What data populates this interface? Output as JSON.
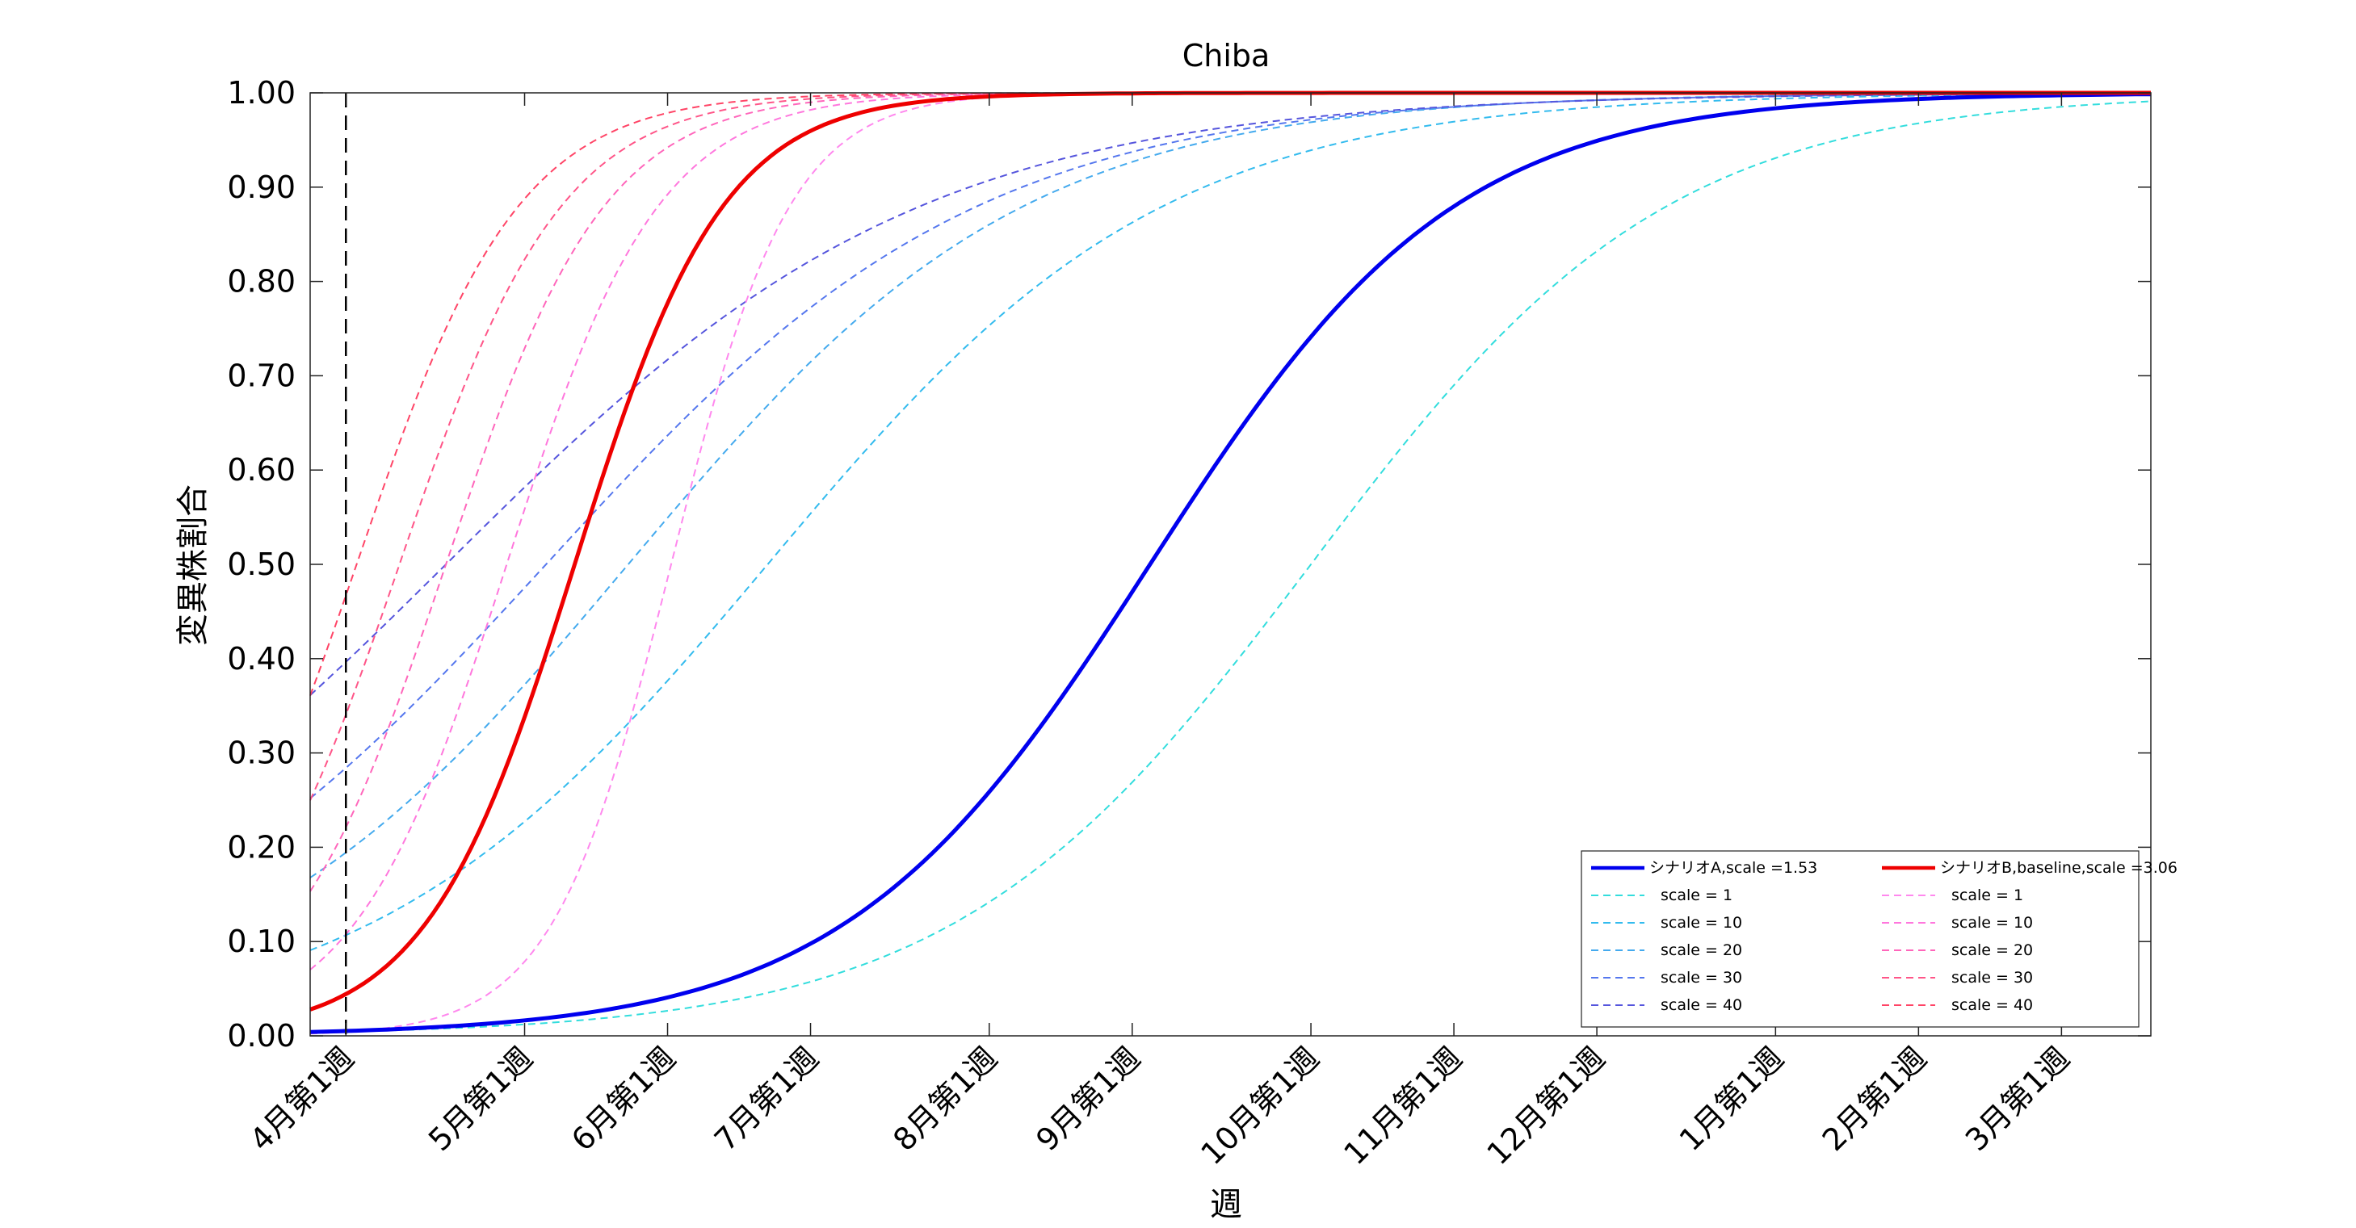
{
  "chart_data": {
    "type": "line",
    "title": "Chiba",
    "xlabel": "週",
    "ylabel": "変異株割合",
    "ylim": [
      0,
      1
    ],
    "xlim": [
      -1,
      50.5
    ],
    "grid": false,
    "legend_position": "bottom-right",
    "yticks": [
      0,
      0.1,
      0.2,
      0.3,
      0.4,
      0.5,
      0.6,
      0.7,
      0.8,
      0.9,
      1.0
    ],
    "ytick_labels": [
      "0.00",
      "0.10",
      "0.20",
      "0.30",
      "0.40",
      "0.50",
      "0.60",
      "0.70",
      "0.80",
      "0.90",
      "1.00"
    ],
    "xticks": [
      0,
      5,
      9,
      13,
      18,
      22,
      27,
      31,
      35,
      40,
      44,
      48
    ],
    "xtick_labels": [
      "4月第1週",
      "5月第1週",
      "6月第1週",
      "7月第1週",
      "8月第1週",
      "9月第1週",
      "10月第1週",
      "11月第1週",
      "12月第1週",
      "1月第1週",
      "2月第1週",
      "3月第1週"
    ],
    "reference_line": {
      "x": 0,
      "style": "dashed",
      "color": "#000000"
    },
    "colors": {
      "scenario_a": "#0000ee",
      "scenario_b": "#ee0000"
    },
    "series": [
      {
        "name": "シナリオA,scale =1.53",
        "legend_group": "A",
        "color": "#0000ee",
        "style": "solid",
        "k": 0.234,
        "x0": 22.5
      },
      {
        "name": "シナリオB,baseline,scale =3.06",
        "legend_group": "B",
        "color": "#ee0000",
        "style": "solid",
        "k": 0.48,
        "x0": 6.4
      },
      {
        "name": "scale = 1",
        "legend_group": "A",
        "color": "#33dddd",
        "style": "dashed",
        "k": 0.2,
        "x0": 27.0
      },
      {
        "name": "scale = 10",
        "legend_group": "A",
        "color": "#33bbee",
        "style": "dashed",
        "k": 0.18,
        "x0": 11.8
      },
      {
        "name": "scale = 20",
        "legend_group": "A",
        "color": "#44aaee",
        "style": "dashed",
        "k": 0.18,
        "x0": 7.9
      },
      {
        "name": "scale = 30",
        "legend_group": "A",
        "color": "#5577ee",
        "style": "dashed",
        "k": 0.165,
        "x0": 5.6
      },
      {
        "name": "scale = 40",
        "legend_group": "A",
        "color": "#5555dd",
        "style": "dashed",
        "k": 0.15,
        "x0": 2.8
      },
      {
        "name": "scale = 1",
        "legend_group": "B",
        "color": "#ff88ee",
        "style": "dashed",
        "k": 0.6,
        "x0": 9.1
      },
      {
        "name": "scale = 10",
        "legend_group": "B",
        "color": "#ff77dd",
        "style": "dashed",
        "k": 0.47,
        "x0": 4.5
      },
      {
        "name": "scale = 20",
        "legend_group": "B",
        "color": "#ff66bb",
        "style": "dashed",
        "k": 0.45,
        "x0": 2.8
      },
      {
        "name": "scale = 30",
        "legend_group": "B",
        "color": "#ff5588",
        "style": "dashed",
        "k": 0.44,
        "x0": 1.5
      },
      {
        "name": "scale = 40",
        "legend_group": "B",
        "color": "#ff4466",
        "style": "dashed",
        "k": 0.44,
        "x0": 0.3
      }
    ]
  }
}
